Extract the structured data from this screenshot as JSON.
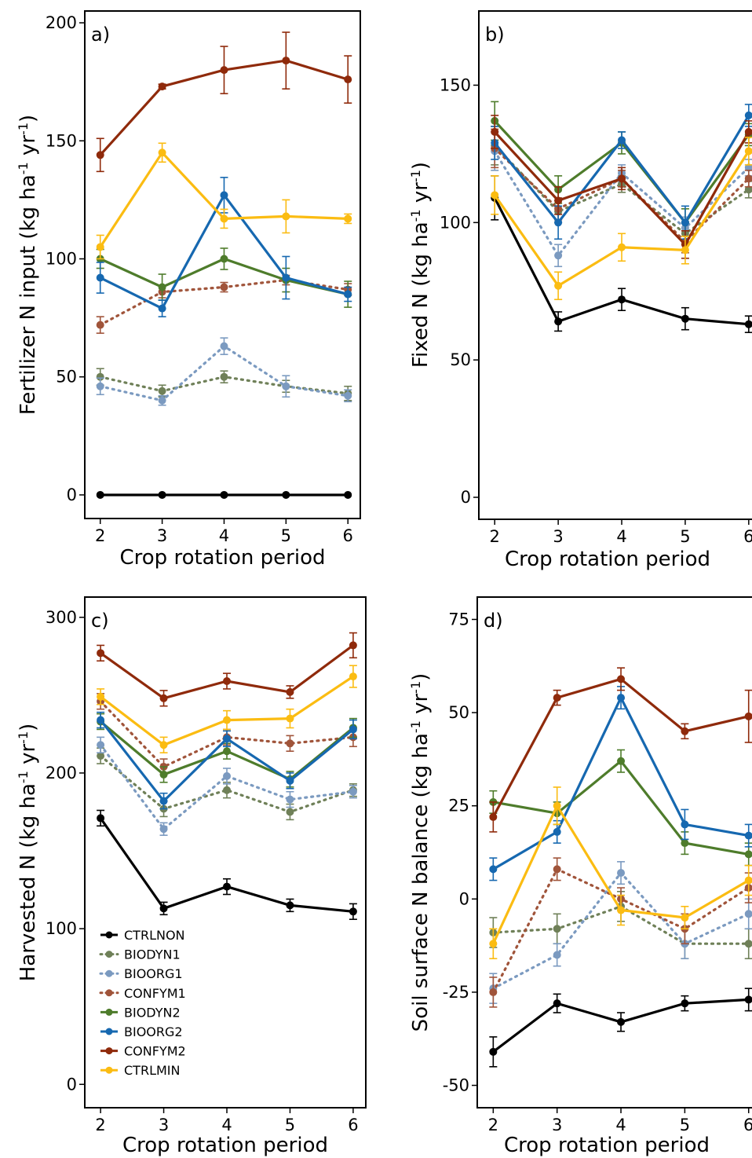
{
  "figure": {
    "x_axis_title": "Crop rotation period",
    "y_axis_unit_prefix": "(kg ha",
    "y_axis_unit_exp1": "-1",
    "y_axis_unit_mid": " yr",
    "y_axis_unit_exp2": "-1",
    "y_axis_unit_suffix": ")"
  },
  "legend": {
    "placement": "bottom-left of panel c",
    "entries": [
      "CTRLNON",
      "BIODYN1",
      "BIOORG1",
      "CONFYM1",
      "BIODYN2",
      "BIOORG2",
      "CONFYM2",
      "CTRLMIN"
    ]
  },
  "series_styles": {
    "CTRLNON": {
      "color": "#000000",
      "line": "solid"
    },
    "BIODYN1": {
      "color": "#6f8058",
      "line": "dotted"
    },
    "BIOORG1": {
      "color": "#7b9ac0",
      "line": "dotted"
    },
    "CONFYM1": {
      "color": "#a0543a",
      "line": "dotted"
    },
    "BIODYN2": {
      "color": "#4e7c2b",
      "line": "solid"
    },
    "BIOORG2": {
      "color": "#1668b0",
      "line": "solid"
    },
    "CONFYM2": {
      "color": "#8f2a0b",
      "line": "solid"
    },
    "CTRLMIN": {
      "color": "#fbbc12",
      "line": "solid"
    }
  },
  "chart_data": [
    {
      "type": "line",
      "panel": "a)",
      "ylabel_main": "Fertilizer N input",
      "xlabel": "Crop rotation period",
      "x": [
        2,
        3,
        4,
        5,
        6
      ],
      "xticks": [
        "2",
        "3",
        "4",
        "5",
        "6"
      ],
      "xlim": [
        1.75,
        6.2
      ],
      "ylim": [
        -10,
        205
      ],
      "yticks": [
        0,
        50,
        100,
        150,
        200
      ],
      "grid": false,
      "series": [
        {
          "name": "CTRLNON",
          "values": [
            0,
            0,
            0,
            0,
            0
          ],
          "err": [
            0,
            0,
            0,
            0,
            0
          ]
        },
        {
          "name": "BIODYN1",
          "values": [
            50,
            44,
            50,
            46,
            43
          ],
          "err": [
            3.5,
            2.5,
            2.5,
            2.5,
            3
          ]
        },
        {
          "name": "BIOORG1",
          "values": [
            46,
            40,
            63,
            46,
            42
          ],
          "err": [
            3.5,
            2,
            3.5,
            4.5,
            2.5
          ]
        },
        {
          "name": "CONFYM1",
          "values": [
            72,
            86,
            88,
            91,
            87
          ],
          "err": [
            3.5,
            2.5,
            2,
            2,
            2.5
          ]
        },
        {
          "name": "BIODYN2",
          "values": [
            100,
            88,
            100,
            91,
            85
          ],
          "err": [
            4,
            5.5,
            4.5,
            5,
            5.5
          ]
        },
        {
          "name": "BIOORG2",
          "values": [
            92,
            79,
            127,
            92,
            85
          ],
          "err": [
            6.5,
            3.5,
            7.5,
            9,
            3
          ]
        },
        {
          "name": "CONFYM2",
          "values": [
            144,
            173,
            180,
            184,
            176
          ],
          "err": [
            7,
            1,
            10,
            12,
            10
          ]
        },
        {
          "name": "CTRLMIN",
          "values": [
            105,
            145,
            117,
            118,
            117
          ],
          "err": [
            5,
            4,
            4,
            7,
            2
          ]
        }
      ]
    },
    {
      "type": "line",
      "panel": "b)",
      "ylabel_main": "Fixed N",
      "xlabel": "Crop rotation period",
      "x": [
        2,
        3,
        4,
        5,
        6
      ],
      "xticks": [
        "2",
        "3",
        "4",
        "5",
        "6"
      ],
      "xlim": [
        1.75,
        6.2
      ],
      "ylim": [
        -8,
        177
      ],
      "yticks": [
        0,
        50,
        100,
        150
      ],
      "grid": false,
      "series": [
        {
          "name": "CTRLNON",
          "values": [
            109,
            64,
            72,
            65,
            63
          ],
          "err": [
            8,
            3.5,
            4,
            4,
            3
          ]
        },
        {
          "name": "BIODYN1",
          "values": [
            128,
            104,
            114,
            96,
            112
          ],
          "err": [
            7,
            4,
            3,
            4,
            3
          ]
        },
        {
          "name": "BIOORG1",
          "values": [
            126,
            88,
            118,
            98,
            120
          ],
          "err": [
            7,
            4,
            3,
            4,
            3
          ]
        },
        {
          "name": "CONFYM1",
          "values": [
            127,
            105,
            116,
            93,
            116
          ],
          "err": [
            7,
            4,
            3,
            4,
            3
          ]
        },
        {
          "name": "BIODYN2",
          "values": [
            137,
            112,
            129,
            100,
            132
          ],
          "err": [
            7,
            5,
            4,
            5,
            4
          ]
        },
        {
          "name": "BIOORG2",
          "values": [
            129,
            100,
            130,
            100,
            139
          ],
          "err": [
            6,
            6,
            3,
            6,
            4
          ]
        },
        {
          "name": "CONFYM2",
          "values": [
            133,
            108,
            116,
            92,
            133
          ],
          "err": [
            6,
            5,
            4,
            5,
            4
          ]
        },
        {
          "name": "CTRLMIN",
          "values": [
            110,
            77,
            91,
            90,
            126
          ],
          "err": [
            7,
            5,
            5,
            5,
            5
          ]
        }
      ]
    },
    {
      "type": "line",
      "panel": "c)",
      "ylabel_main": "Harvested N",
      "xlabel": "Crop rotation period",
      "x": [
        2,
        3,
        4,
        5,
        6
      ],
      "xticks": [
        "2",
        "3",
        "4",
        "5",
        "6"
      ],
      "xlim": [
        1.75,
        6.2
      ],
      "ylim": [
        -15,
        313
      ],
      "yticks": [
        0,
        100,
        200,
        300
      ],
      "grid": false,
      "series": [
        {
          "name": "CTRLNON",
          "values": [
            171,
            113,
            127,
            115,
            111
          ],
          "err": [
            5,
            4,
            5,
            4,
            5
          ]
        },
        {
          "name": "BIODYN1",
          "values": [
            211,
            177,
            189,
            175,
            189
          ],
          "err": [
            5,
            5,
            5,
            5,
            4
          ]
        },
        {
          "name": "BIOORG1",
          "values": [
            218,
            164,
            198,
            183,
            188
          ],
          "err": [
            5,
            4,
            5,
            5,
            4
          ]
        },
        {
          "name": "CONFYM1",
          "values": [
            246,
            204,
            223,
            219,
            223
          ],
          "err": [
            5,
            5,
            5,
            5,
            6
          ]
        },
        {
          "name": "BIODYN2",
          "values": [
            233,
            199,
            214,
            196,
            229
          ],
          "err": [
            5,
            5,
            5,
            5,
            6
          ]
        },
        {
          "name": "BIOORG2",
          "values": [
            234,
            182,
            222,
            195,
            228
          ],
          "err": [
            5,
            5,
            5,
            5,
            6
          ]
        },
        {
          "name": "CONFYM2",
          "values": [
            277,
            248,
            259,
            252,
            282
          ],
          "err": [
            5,
            5,
            5,
            4,
            8
          ]
        },
        {
          "name": "CTRLMIN",
          "values": [
            249,
            218,
            234,
            235,
            262
          ],
          "err": [
            5,
            5,
            6,
            6,
            7
          ]
        }
      ]
    },
    {
      "type": "line",
      "panel": "d)",
      "ylabel_main": "Soil surface N balance",
      "xlabel": "Crop rotation period",
      "x": [
        2,
        3,
        4,
        5,
        6
      ],
      "xticks": [
        "2",
        "3",
        "4",
        "5",
        "6"
      ],
      "xlim": [
        1.75,
        6.2
      ],
      "ylim": [
        -56,
        81
      ],
      "yticks": [
        -50,
        -25,
        0,
        25,
        50,
        75
      ],
      "grid": false,
      "series": [
        {
          "name": "CTRLNON",
          "values": [
            -41,
            -28,
            -33,
            -28,
            -27
          ],
          "err": [
            4,
            2.5,
            2.5,
            2,
            3
          ]
        },
        {
          "name": "BIODYN1",
          "values": [
            -9,
            -8,
            -2,
            -12,
            -12
          ],
          "err": [
            4,
            4,
            4,
            4,
            4
          ]
        },
        {
          "name": "BIOORG1",
          "values": [
            -24,
            -15,
            7,
            -12,
            -4
          ],
          "err": [
            4,
            3,
            3,
            4,
            4
          ]
        },
        {
          "name": "CONFYM1",
          "values": [
            -25,
            8,
            0,
            -8,
            3
          ],
          "err": [
            4,
            3,
            3,
            4,
            4
          ]
        },
        {
          "name": "BIODYN2",
          "values": [
            26,
            23,
            37,
            15,
            12
          ],
          "err": [
            3,
            3,
            3,
            3,
            3
          ]
        },
        {
          "name": "BIOORG2",
          "values": [
            8,
            18,
            54,
            20,
            17
          ],
          "err": [
            3,
            3,
            3,
            4,
            3
          ]
        },
        {
          "name": "CONFYM2",
          "values": [
            22,
            54,
            59,
            45,
            49
          ],
          "err": [
            4,
            2,
            3,
            2,
            7
          ]
        },
        {
          "name": "CTRLMIN",
          "values": [
            -12,
            25,
            -3,
            -5,
            5
          ],
          "err": [
            4,
            5,
            4,
            3,
            4
          ]
        }
      ]
    }
  ]
}
